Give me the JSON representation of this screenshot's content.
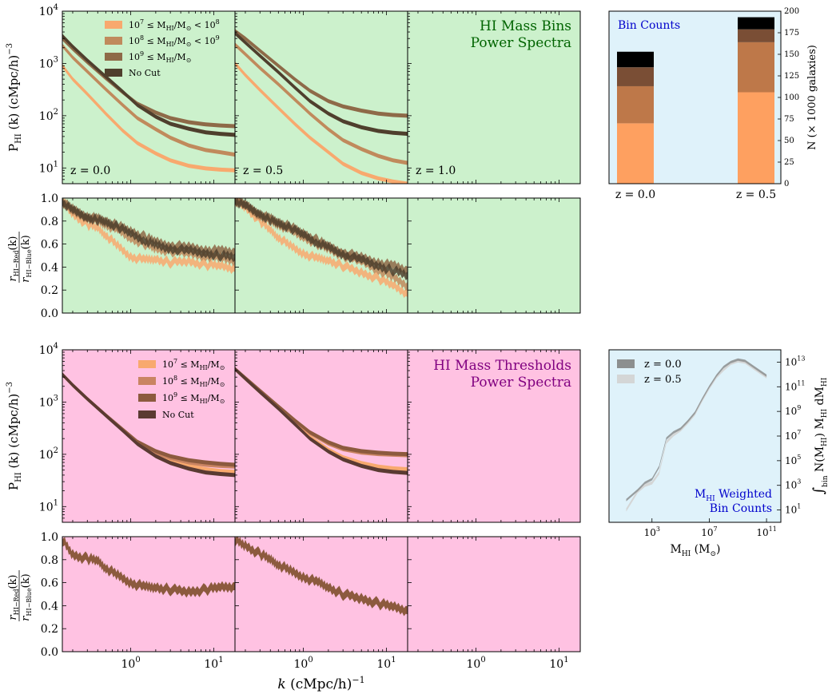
{
  "colors": {
    "green_bg": "#ccf1cc",
    "pink_bg": "#ffc2e2",
    "blue_bg": "#dff2fa",
    "c1": "#f8a96e",
    "c2": "#c08a5c",
    "c3": "#8e6a48",
    "c4": "#4f3f2d",
    "p1": "#f8a96e",
    "p2": "#c98462",
    "p3": "#8c5a3e",
    "p4": "#5a3a32",
    "bar1": "#fea060",
    "bar2": "#be7849",
    "bar3": "#7a4e35",
    "bar4": "#000000",
    "z0": "#8c8f8f",
    "z05": "#d4d6d6"
  },
  "labels": {
    "ylabel_power": "P",
    "ylabel_power_sub": "HI",
    "ylabel_power_rest": " (k) (cMpc/h)",
    "ylabel_power_exp": "−3",
    "ylabel_ratio_num": "r",
    "ylabel_ratio_num_sub": "HI−Red",
    "ylabel_ratio_den": "r",
    "ylabel_ratio_den_sub": "HI−Blue",
    "ylabel_ratio_k": "(k)",
    "xlabel": "k (cMpc/h)",
    "xlabel_exp": "−1",
    "z_labels": [
      "z = 0.0",
      "z = 0.5",
      "z = 1.0"
    ],
    "bins_title_1": "HI Mass Bins",
    "bins_title_2": "Power Spectra",
    "thr_title_1": "HI Mass Thresholds",
    "thr_title_2": "Power Spectra",
    "bin_counts_title": "Bin Counts",
    "bin_counts_ylabel": "N (× 1000 galaxies)",
    "weighted_title_1": "M",
    "weighted_title_1_sub": "HI",
    "weighted_title_1_rest": " Weighted",
    "weighted_title_2": "Bin Counts",
    "weighted_xlabel": "M",
    "weighted_xlabel_sub": "HI",
    "weighted_xlabel_rest": " (M",
    "weighted_xlabel_end": ")",
    "weighted_ylabel": "∫",
    "weighted_ylabel_sub": "bin",
    "weighted_ylabel_rest": " N(M",
    "weighted_ylabel_rest2": ") M",
    "weighted_ylabel_rest3": " dM"
  },
  "legend_bins": [
    {
      "pre": "10",
      "exp1": "7",
      "mid": "≤ M",
      "sub": "HI",
      "post": "/M",
      "sym": "⊙",
      "tail": " < 10",
      "exp2": "8"
    },
    {
      "pre": "10",
      "exp1": "8",
      "mid": "≤ M",
      "sub": "HI",
      "post": "/M",
      "sym": "⊙",
      "tail": " < 10",
      "exp2": "9"
    },
    {
      "pre": "10",
      "exp1": "9",
      "mid": "≤ M",
      "sub": "HI",
      "post": "/M",
      "sym": "⊙",
      "tail": "",
      "exp2": ""
    },
    {
      "pre": "No Cut",
      "exp1": "",
      "mid": "",
      "sub": "",
      "post": "",
      "sym": "",
      "tail": "",
      "exp2": ""
    }
  ],
  "legend_thresholds": [
    {
      "pre": "10",
      "exp1": "7",
      "mid": "≤ M",
      "sub": "HI",
      "post": "/M",
      "sym": "⊙"
    },
    {
      "pre": "10",
      "exp1": "8",
      "mid": "≤ M",
      "sub": "HI",
      "post": "/M",
      "sym": "⊙"
    },
    {
      "pre": "10",
      "exp1": "9",
      "mid": "≤ M",
      "sub": "HI",
      "post": "/M",
      "sym": "⊙"
    },
    {
      "pre": "No Cut",
      "exp1": "",
      "mid": "",
      "sub": "",
      "post": "",
      "sym": ""
    }
  ],
  "legend_weighted": [
    "z = 0.0",
    "z = 0.5"
  ],
  "chart_data": [
    {
      "type": "line",
      "panel": "bins-power",
      "xscale": "log",
      "yscale": "log",
      "xlim": [
        0.15,
        18
      ],
      "ylim": [
        5,
        10000
      ],
      "yticks": [
        "10¹",
        "10²",
        "10³",
        "10⁴"
      ],
      "x": [
        0.15,
        0.2,
        0.3,
        0.5,
        0.8,
        1.2,
        2,
        3,
        5,
        8,
        12,
        18
      ],
      "z0": [
        [
          900,
          500,
          260,
          110,
          52,
          30,
          19,
          14,
          11,
          9.8,
          9.3,
          9
        ],
        [
          2200,
          1300,
          700,
          320,
          160,
          90,
          55,
          38,
          27,
          22,
          20,
          18
        ],
        [
          3000,
          1900,
          1050,
          520,
          280,
          170,
          115,
          90,
          75,
          68,
          65,
          63
        ],
        [
          3400,
          2100,
          1150,
          560,
          290,
          160,
          95,
          70,
          56,
          48,
          45,
          43
        ]
      ],
      "z05": [
        [
          1000,
          600,
          310,
          140,
          68,
          38,
          20,
          12,
          8,
          6.3,
          5.5,
          5
        ],
        [
          2300,
          1500,
          820,
          400,
          200,
          110,
          55,
          34,
          23,
          17,
          14,
          12.5
        ],
        [
          4200,
          3000,
          1750,
          900,
          490,
          300,
          190,
          150,
          125,
          110,
          103,
          100
        ],
        [
          3800,
          2500,
          1400,
          680,
          340,
          190,
          110,
          78,
          60,
          51,
          47,
          45
        ]
      ]
    },
    {
      "type": "area",
      "panel": "bins-ratio",
      "xscale": "log",
      "xlim": [
        0.15,
        18
      ],
      "ylim": [
        0,
        1
      ],
      "yticks": [
        "0.0",
        "0.2",
        "0.4",
        "0.6",
        "0.8",
        "1.0"
      ],
      "x": [
        0.15,
        0.2,
        0.3,
        0.4,
        0.5,
        0.7,
        1,
        1.5,
        2,
        3,
        5,
        8,
        12,
        18
      ],
      "z0": [
        [
          0.97,
          0.86,
          0.77,
          0.74,
          0.68,
          0.58,
          0.49,
          0.46,
          0.47,
          0.44,
          0.45,
          0.42,
          0.41,
          0.39
        ],
        [
          0.97,
          0.88,
          0.83,
          0.8,
          0.77,
          0.72,
          0.65,
          0.6,
          0.56,
          0.54,
          0.52,
          0.5,
          0.48,
          0.46
        ],
        [
          0.97,
          0.9,
          0.84,
          0.82,
          0.8,
          0.76,
          0.71,
          0.66,
          0.62,
          0.59,
          0.57,
          0.55,
          0.54,
          0.53
        ],
        [
          0.97,
          0.89,
          0.83,
          0.81,
          0.79,
          0.75,
          0.69,
          0.63,
          0.59,
          0.56,
          0.54,
          0.52,
          0.5,
          0.49
        ]
      ],
      "z05": [
        [
          0.98,
          0.92,
          0.8,
          0.72,
          0.66,
          0.58,
          0.52,
          0.47,
          0.46,
          0.41,
          0.35,
          0.3,
          0.24,
          0.17
        ],
        [
          0.98,
          0.93,
          0.85,
          0.8,
          0.77,
          0.72,
          0.66,
          0.6,
          0.56,
          0.5,
          0.45,
          0.38,
          0.31,
          0.24
        ],
        [
          0.98,
          0.94,
          0.86,
          0.82,
          0.79,
          0.75,
          0.69,
          0.63,
          0.58,
          0.53,
          0.48,
          0.44,
          0.41,
          0.37
        ],
        [
          0.98,
          0.93,
          0.86,
          0.81,
          0.78,
          0.74,
          0.68,
          0.61,
          0.57,
          0.51,
          0.46,
          0.41,
          0.37,
          0.33
        ]
      ]
    },
    {
      "type": "bar",
      "panel": "bin-counts",
      "categories": [
        "z = 0.0",
        "z = 0.5"
      ],
      "ylim": [
        0,
        200
      ],
      "yticks": [
        0,
        25,
        50,
        75,
        100,
        125,
        150,
        175,
        200
      ],
      "stacks": [
        [
          70,
          43,
          22,
          18
        ],
        [
          106,
          58,
          15,
          14
        ]
      ]
    },
    {
      "type": "line",
      "panel": "thresholds-power",
      "xscale": "log",
      "yscale": "log",
      "xlim": [
        0.15,
        18
      ],
      "ylim": [
        5,
        10000
      ],
      "yticks": [
        "10¹",
        "10²",
        "10³",
        "10⁴"
      ],
      "x": [
        0.15,
        0.2,
        0.3,
        0.5,
        0.8,
        1.2,
        2,
        3,
        5,
        8,
        12,
        18
      ],
      "z0": [
        [
          3400,
          2100,
          1150,
          560,
          290,
          165,
          100,
          76,
          60,
          52,
          48,
          46
        ],
        [
          3400,
          2100,
          1150,
          560,
          295,
          170,
          108,
          85,
          70,
          63,
          60,
          58
        ],
        [
          3400,
          2100,
          1150,
          565,
          300,
          175,
          115,
          92,
          77,
          70,
          66,
          63
        ],
        [
          3400,
          2100,
          1150,
          555,
          285,
          158,
          92,
          68,
          53,
          45,
          42,
          40
        ]
      ],
      "z05": [
        [
          4300,
          2800,
          1550,
          760,
          385,
          215,
          123,
          88,
          68,
          58,
          54,
          52
        ],
        [
          4300,
          2900,
          1650,
          820,
          430,
          255,
          160,
          125,
          108,
          101,
          98,
          96
        ],
        [
          4300,
          2900,
          1660,
          830,
          440,
          265,
          170,
          133,
          115,
          107,
          103,
          101
        ],
        [
          4300,
          2800,
          1550,
          750,
          370,
          200,
          113,
          80,
          60,
          50,
          46,
          44
        ]
      ]
    },
    {
      "type": "area",
      "panel": "thresholds-ratio",
      "xscale": "log",
      "xlim": [
        0.15,
        18
      ],
      "ylim": [
        0,
        1
      ],
      "yticks": [
        "0.0",
        "0.2",
        "0.4",
        "0.6",
        "0.8",
        "1.0"
      ],
      "x": [
        0.15,
        0.2,
        0.3,
        0.4,
        0.5,
        0.7,
        1,
        1.5,
        2,
        3,
        5,
        8,
        12,
        18
      ],
      "z0": [
        0.97,
        0.84,
        0.81,
        0.79,
        0.73,
        0.66,
        0.6,
        0.56,
        0.56,
        0.54,
        0.52,
        0.54,
        0.56,
        0.57
      ],
      "z05": [
        0.97,
        0.92,
        0.85,
        0.8,
        0.76,
        0.7,
        0.65,
        0.6,
        0.56,
        0.5,
        0.46,
        0.42,
        0.39,
        0.36
      ]
    },
    {
      "type": "area",
      "panel": "weighted-bin-counts",
      "xscale": "log",
      "yscale": "log",
      "xlim": [
        1.0,
        1000000000000.0
      ],
      "ylim": [
        1.0,
        100000000000000.0
      ],
      "xticks": [
        "10³",
        "10⁷",
        "10¹¹"
      ],
      "yticks": [
        "10¹",
        "10³",
        "10⁵",
        "10⁷",
        "10⁹",
        "10¹¹",
        "10¹³"
      ],
      "logx": [
        1.2,
        2,
        2.5,
        3,
        3.5,
        4,
        4.5,
        5,
        5.5,
        6,
        6.5,
        7,
        7.5,
        8,
        8.5,
        9,
        9.5,
        10,
        10.5,
        11
      ],
      "z0_logy": [
        1.8,
        2.6,
        3.2,
        3.5,
        4.5,
        6.8,
        7.3,
        7.6,
        8.2,
        8.9,
        10.0,
        11.0,
        11.9,
        12.6,
        13.0,
        13.2,
        13.1,
        12.7,
        12.3,
        11.9
      ],
      "z05_logy": [
        1.0,
        2.5,
        3.0,
        3.2,
        4.0,
        6.5,
        7.1,
        7.5,
        8.1,
        8.8,
        9.9,
        10.9,
        11.8,
        12.4,
        12.9,
        13.1,
        13.0,
        12.6,
        12.2,
        11.8
      ]
    }
  ]
}
